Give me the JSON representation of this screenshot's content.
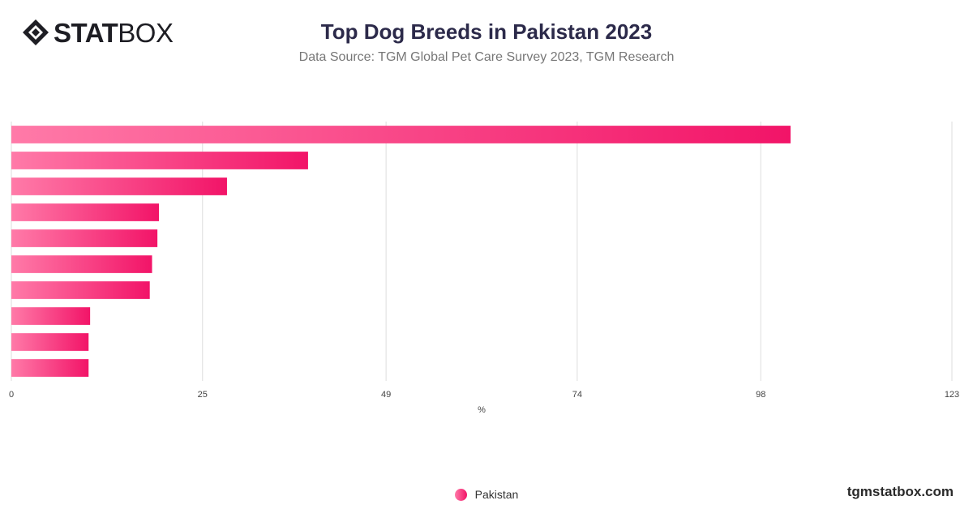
{
  "brand": {
    "logo_bold": "STAT",
    "logo_light": "BOX",
    "footer": "tgmstatbox.com"
  },
  "header": {
    "title": "Top Dog Breeds in Pakistan 2023",
    "subtitle": "Data Source: TGM Global Pet Care Survey 2023, TGM Research"
  },
  "colors": {
    "bar_start": "#ff7aa8",
    "bar_end": "#f21468",
    "grid": "#dddddd",
    "axis_text": "#444444"
  },
  "chart_data": {
    "type": "bar",
    "orientation": "horizontal",
    "categories": [
      "",
      "",
      "",
      "",
      "",
      "",
      "",
      "",
      "",
      ""
    ],
    "series": [
      {
        "name": "Pakistan",
        "values": [
          101.9,
          38.8,
          28.2,
          19.3,
          19.1,
          18.4,
          18.1,
          10.3,
          10.1,
          10.1
        ]
      }
    ],
    "xlabel": "%",
    "xlim": [
      0,
      123
    ],
    "xticks": [
      0,
      25,
      49,
      74,
      98,
      123
    ],
    "grid": true,
    "legend": "bottom-center"
  }
}
